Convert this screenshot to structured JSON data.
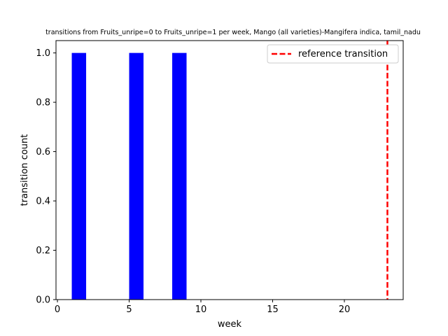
{
  "chart_data": {
    "type": "bar",
    "title": "transitions from Fruits_unripe=0 to Fruits_unripe=1 per week, Mango (all varieties)-Mangifera indica, tamil_nadu",
    "xlabel": "week",
    "ylabel": "transition count",
    "xlim": [
      -0.1,
      24.1
    ],
    "ylim": [
      0,
      1.05
    ],
    "xticks": [
      0,
      5,
      10,
      15,
      20
    ],
    "yticks": [
      0.0,
      0.2,
      0.4,
      0.6,
      0.8,
      1.0
    ],
    "xtick_labels": [
      "0",
      "5",
      "10",
      "15",
      "20"
    ],
    "ytick_labels": [
      "0.0",
      "0.2",
      "0.4",
      "0.6",
      "0.8",
      "1.0"
    ],
    "bar_width": 1,
    "bar_color": "#0000ff",
    "series": [
      {
        "x": [
          1,
          5,
          8
        ],
        "values": [
          1,
          1,
          1
        ]
      }
    ],
    "reference_line": {
      "x": 23,
      "label": "reference transition",
      "color": "#ff0000",
      "style": "dashed"
    },
    "grid": false,
    "legend_position": "top-right"
  }
}
